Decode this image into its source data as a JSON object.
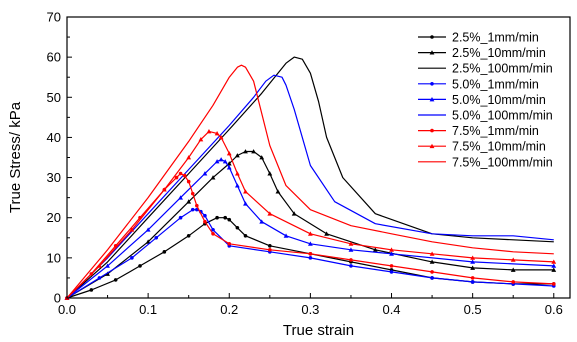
{
  "chart_data": {
    "type": "line",
    "title": "",
    "xlabel": "True strain",
    "ylabel": "True Stress/ kPa",
    "xlim": [
      0.0,
      0.62
    ],
    "ylim": [
      0,
      70
    ],
    "x_ticks": [
      "0.0",
      "0.1",
      "0.2",
      "0.3",
      "0.4",
      "0.5",
      "0.6"
    ],
    "y_ticks": [
      "0",
      "10",
      "20",
      "30",
      "40",
      "50",
      "60",
      "70"
    ],
    "grid": false,
    "legend_position": "top-right",
    "series": [
      {
        "name": "2.5%_1mm/min",
        "color": "#000000",
        "marker": "circle",
        "x": [
          0,
          0.03,
          0.06,
          0.09,
          0.12,
          0.15,
          0.17,
          0.185,
          0.195,
          0.2,
          0.21,
          0.22,
          0.25,
          0.3,
          0.35,
          0.4,
          0.45,
          0.5,
          0.55,
          0.6
        ],
        "y": [
          0,
          2,
          4.5,
          8,
          11.5,
          15.5,
          18.5,
          20,
          20,
          19.5,
          17.5,
          15.5,
          13,
          11,
          9,
          7,
          5,
          4,
          3.5,
          3.5
        ]
      },
      {
        "name": "2.5%_10mm/min",
        "color": "#000000",
        "marker": "triangle",
        "x": [
          0,
          0.05,
          0.1,
          0.15,
          0.18,
          0.2,
          0.21,
          0.22,
          0.23,
          0.24,
          0.25,
          0.26,
          0.28,
          0.32,
          0.38,
          0.45,
          0.5,
          0.55,
          0.6
        ],
        "y": [
          0,
          6,
          14,
          24,
          30,
          33.5,
          35.5,
          36.5,
          36.5,
          35,
          31,
          26.5,
          21,
          16,
          12,
          9,
          7.5,
          7,
          7
        ]
      },
      {
        "name": "2.5%_100mm/min",
        "color": "#000000",
        "marker": "none",
        "x": [
          0,
          0.05,
          0.1,
          0.15,
          0.2,
          0.24,
          0.26,
          0.27,
          0.28,
          0.29,
          0.3,
          0.31,
          0.32,
          0.34,
          0.38,
          0.45,
          0.5,
          0.55,
          0.6
        ],
        "y": [
          0,
          9,
          20,
          31,
          42,
          51,
          56,
          58.5,
          60,
          59.5,
          56,
          49,
          40,
          30,
          21,
          16,
          15,
          14.5,
          14
        ]
      },
      {
        "name": "5.0%_1mm/min",
        "color": "#0000ff",
        "marker": "circle",
        "x": [
          0,
          0.04,
          0.08,
          0.11,
          0.14,
          0.155,
          0.16,
          0.165,
          0.17,
          0.18,
          0.2,
          0.25,
          0.3,
          0.35,
          0.4,
          0.45,
          0.5,
          0.55,
          0.6
        ],
        "y": [
          0,
          5,
          10,
          15,
          20,
          22,
          22,
          21.5,
          20.5,
          17,
          13,
          11.5,
          10,
          8,
          6.5,
          5,
          4,
          3.5,
          3
        ]
      },
      {
        "name": "5.0%_10mm/min",
        "color": "#0000ff",
        "marker": "triangle",
        "x": [
          0,
          0.05,
          0.1,
          0.14,
          0.17,
          0.185,
          0.19,
          0.195,
          0.2,
          0.21,
          0.22,
          0.24,
          0.27,
          0.3,
          0.35,
          0.4,
          0.5,
          0.6
        ],
        "y": [
          0,
          8,
          17,
          25,
          31,
          34,
          34.5,
          34,
          32.5,
          28,
          23.5,
          19,
          15.5,
          13.5,
          12,
          11,
          9,
          8
        ]
      },
      {
        "name": "5.0%_100mm/min",
        "color": "#0000ff",
        "marker": "none",
        "x": [
          0,
          0.05,
          0.1,
          0.15,
          0.2,
          0.23,
          0.245,
          0.255,
          0.265,
          0.27,
          0.28,
          0.29,
          0.3,
          0.33,
          0.38,
          0.45,
          0.5,
          0.55,
          0.6
        ],
        "y": [
          0,
          10,
          21,
          32,
          43,
          50,
          54,
          55.5,
          55,
          53,
          47,
          40,
          33,
          24,
          18.5,
          16,
          15.5,
          15.5,
          14.5
        ]
      },
      {
        "name": "7.5%_1mm/min",
        "color": "#ff0000",
        "marker": "circle",
        "x": [
          0,
          0.03,
          0.06,
          0.09,
          0.12,
          0.135,
          0.14,
          0.145,
          0.15,
          0.155,
          0.16,
          0.17,
          0.18,
          0.2,
          0.25,
          0.3,
          0.35,
          0.4,
          0.45,
          0.5,
          0.55,
          0.6
        ],
        "y": [
          0,
          6,
          13,
          20,
          27,
          30,
          31,
          30.5,
          29,
          26,
          23,
          19,
          16,
          13.5,
          12,
          11,
          9.5,
          8,
          6.5,
          5,
          4,
          3.5
        ]
      },
      {
        "name": "7.5%_10mm/min",
        "color": "#ff0000",
        "marker": "triangle",
        "x": [
          0,
          0.04,
          0.08,
          0.12,
          0.15,
          0.165,
          0.175,
          0.185,
          0.19,
          0.2,
          0.21,
          0.22,
          0.25,
          0.3,
          0.35,
          0.4,
          0.45,
          0.5,
          0.55,
          0.6
        ],
        "y": [
          0,
          8,
          17,
          27,
          35,
          39.5,
          41.5,
          41,
          40,
          36,
          31,
          26.5,
          21,
          16,
          13.5,
          12,
          11,
          10,
          9.5,
          9
        ]
      },
      {
        "name": "7.5%_100mm/min",
        "color": "#ff0000",
        "marker": "none",
        "x": [
          0,
          0.05,
          0.1,
          0.15,
          0.18,
          0.2,
          0.21,
          0.215,
          0.22,
          0.23,
          0.24,
          0.25,
          0.27,
          0.3,
          0.35,
          0.4,
          0.45,
          0.5,
          0.55,
          0.6
        ],
        "y": [
          0,
          12,
          25,
          39,
          48,
          55,
          57.5,
          58,
          57.5,
          54,
          46,
          38,
          28,
          22,
          18,
          16,
          14,
          12.5,
          11.5,
          11
        ]
      }
    ]
  }
}
